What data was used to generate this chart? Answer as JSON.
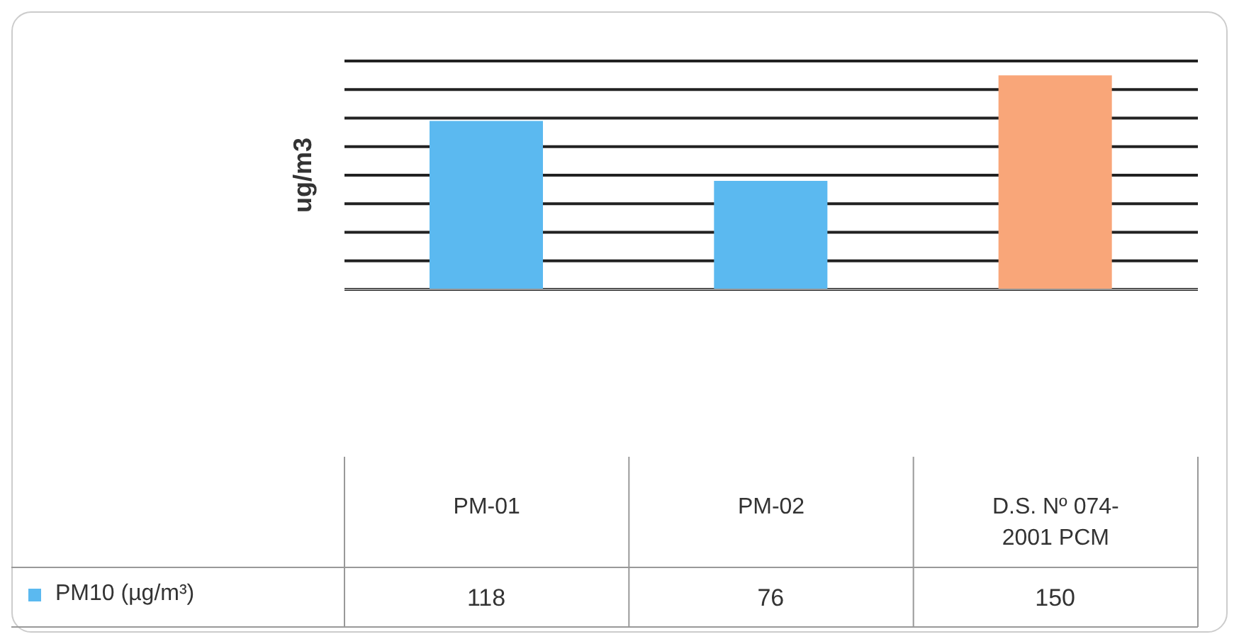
{
  "chart_data": {
    "type": "bar",
    "ylabel": "ug/m3",
    "categories": [
      "PM-01",
      "PM-02",
      "D.S. Nº 074-2001 PCM"
    ],
    "series": [
      {
        "name": "PM10 (µg/m³)",
        "color": "#5bb9f0",
        "colors": [
          "#5bb9f0",
          "#5bb9f0",
          "#f9a679"
        ],
        "values": [
          118,
          76,
          150
        ]
      }
    ],
    "ylim": [
      0,
      160
    ],
    "yticks": [
      {
        "value": 0,
        "label": null
      },
      {
        "value": 20,
        "label": null
      },
      {
        "value": 40,
        "label": null
      },
      {
        "value": 60,
        "label": null
      },
      {
        "value": 80,
        "label": null
      },
      {
        "value": 100,
        "label": null
      },
      {
        "value": 120,
        "label": null
      },
      {
        "value": 140,
        "label": null
      },
      {
        "value": 160,
        "label": null
      }
    ],
    "tick_labels": "x",
    "grid": "y",
    "data_labels": true,
    "legend": "bottom left"
  }
}
